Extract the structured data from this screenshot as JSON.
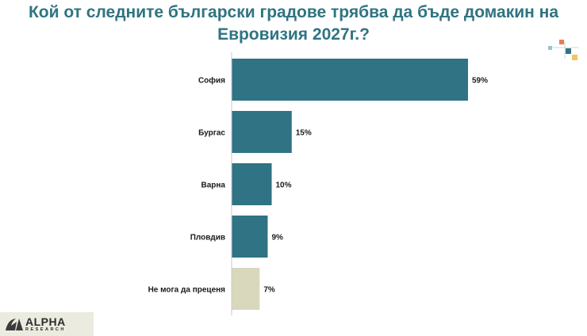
{
  "chart_data": {
    "type": "bar",
    "orientation": "horizontal",
    "title": "Кой от следните български градове трябва да бъде домакин на Евровизия 2027г.?",
    "categories": [
      "София",
      "Бургас",
      "Варна",
      "Пловдив",
      "Не мога да преценя"
    ],
    "values": [
      59,
      15,
      10,
      9,
      7
    ],
    "value_labels": [
      "59%",
      "15%",
      "10%",
      "9%",
      "7%"
    ],
    "unit": "%",
    "xlim": [
      0,
      60
    ],
    "grid": false,
    "legend": "none",
    "colors": {
      "main": "#2f7384",
      "neutral": "#d9d8bd",
      "title": "#2f7482"
    }
  },
  "logo": {
    "main": "ALPHA",
    "sub": "RESEARCH",
    "registered": "®"
  }
}
